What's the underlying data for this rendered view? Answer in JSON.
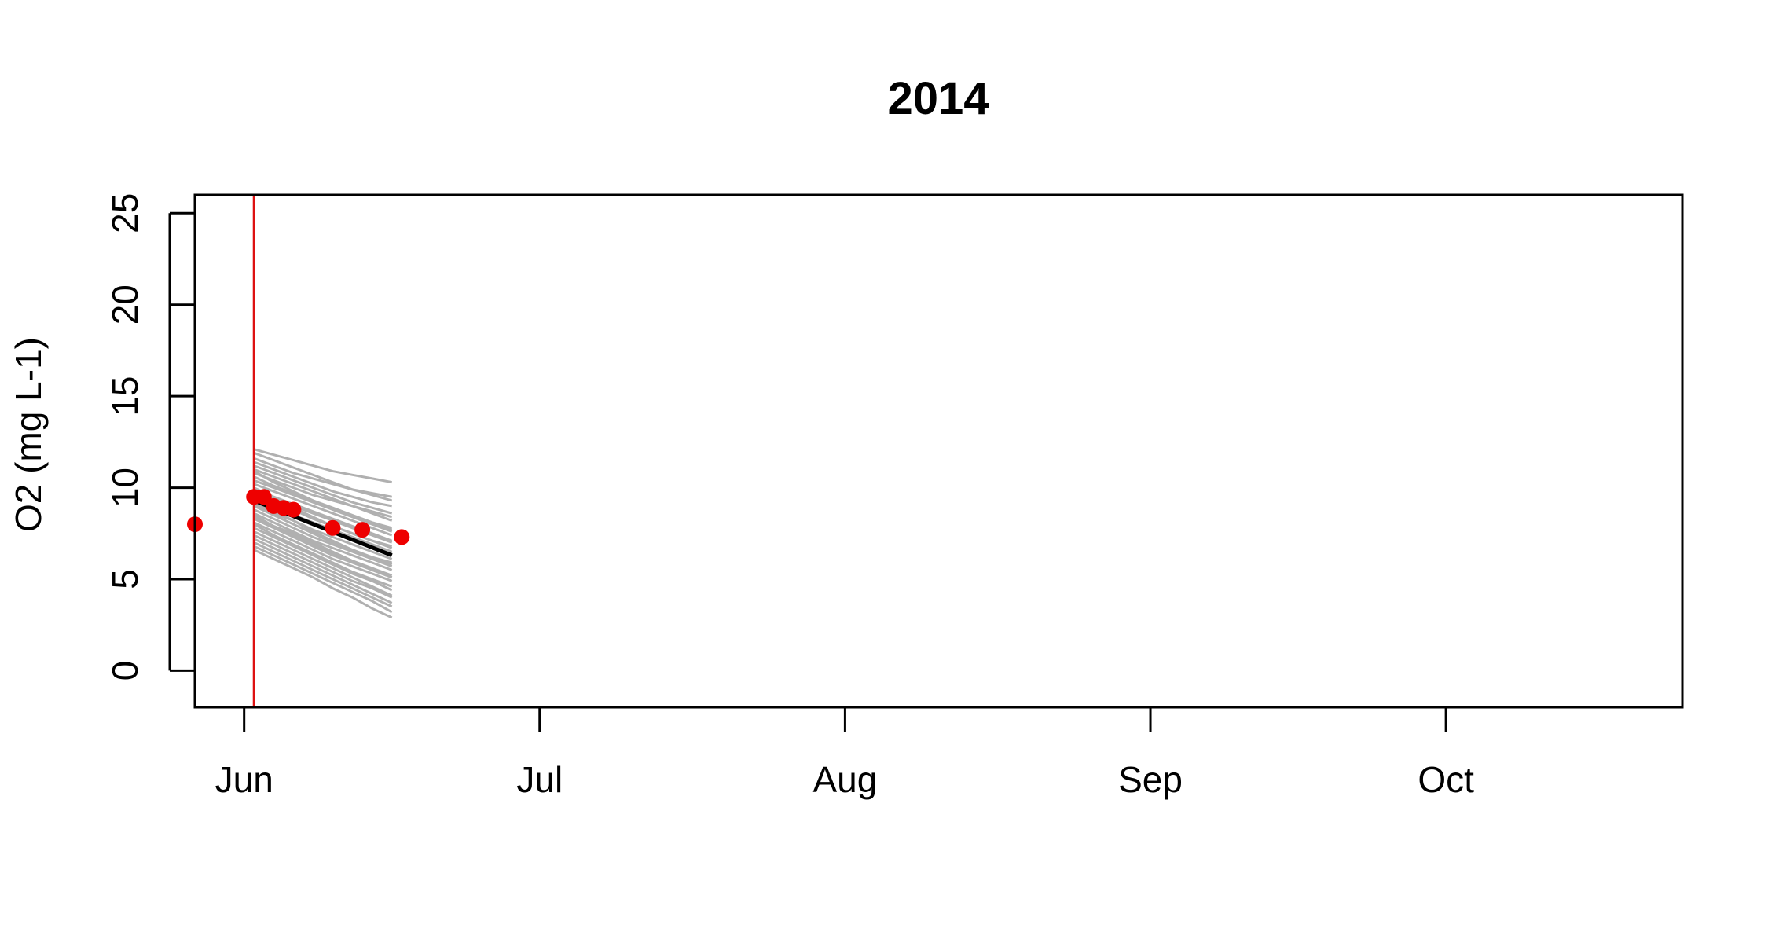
{
  "chart_data": {
    "type": "line",
    "title": "2014",
    "xlabel": "",
    "ylabel": "O2 (mg L-1)",
    "xlim": [
      "2014-05-27",
      "2014-10-25"
    ],
    "ylim": [
      -2,
      26
    ],
    "y_ticks": [
      0,
      5,
      10,
      15,
      20,
      25
    ],
    "x_ticks": [
      {
        "date": "2014-06-01",
        "label": "Jun"
      },
      {
        "date": "2014-07-01",
        "label": "Jul"
      },
      {
        "date": "2014-08-01",
        "label": "Aug"
      },
      {
        "date": "2014-09-01",
        "label": "Sep"
      },
      {
        "date": "2014-10-01",
        "label": "Oct"
      }
    ],
    "grid": false,
    "legend": "none",
    "forecast_start": "2014-06-02",
    "colors": {
      "ensemble": "#b0b0b0",
      "mean": "#000000",
      "observed": "#ee0000",
      "forecast_start_line": "#dd1111"
    },
    "ensemble": {
      "dates": [
        "2014-06-02",
        "2014-06-04",
        "2014-06-06",
        "2014-06-08",
        "2014-06-10",
        "2014-06-12",
        "2014-06-14",
        "2014-06-16"
      ],
      "members": [
        {
          "values": [
            12.1,
            11.8,
            11.5,
            11.2,
            10.9,
            10.7,
            10.5,
            10.3
          ]
        },
        {
          "values": [
            11.9,
            11.5,
            11.1,
            10.7,
            10.3,
            9.9,
            9.6,
            9.3
          ]
        },
        {
          "values": [
            11.6,
            11.2,
            10.8,
            10.5,
            10.2,
            9.9,
            9.7,
            9.5
          ]
        },
        {
          "values": [
            11.4,
            11.0,
            10.6,
            10.2,
            9.8,
            9.5,
            9.2,
            9.0
          ]
        },
        {
          "values": [
            11.2,
            10.8,
            10.4,
            10.0,
            9.6,
            9.2,
            8.9,
            8.6
          ]
        },
        {
          "values": [
            11.0,
            10.6,
            10.2,
            9.8,
            9.4,
            9.0,
            8.6,
            8.2
          ]
        },
        {
          "values": [
            10.8,
            10.4,
            10.0,
            9.6,
            9.3,
            9.0,
            8.7,
            8.4
          ]
        },
        {
          "values": [
            10.6,
            10.1,
            9.7,
            9.3,
            8.9,
            8.5,
            8.1,
            7.8
          ]
        },
        {
          "values": [
            10.4,
            10.0,
            9.6,
            9.2,
            8.8,
            8.4,
            8.0,
            7.6
          ]
        },
        {
          "values": [
            10.2,
            9.8,
            9.4,
            9.0,
            8.6,
            8.2,
            7.8,
            7.4
          ]
        },
        {
          "values": [
            10.0,
            9.5,
            9.1,
            8.7,
            8.3,
            7.9,
            7.5,
            7.1
          ]
        },
        {
          "values": [
            9.8,
            9.4,
            9.0,
            8.6,
            8.2,
            7.8,
            7.4,
            7.0
          ]
        },
        {
          "values": [
            9.7,
            9.2,
            8.8,
            8.3,
            7.9,
            7.5,
            7.1,
            6.7
          ]
        },
        {
          "values": [
            9.5,
            9.0,
            8.5,
            8.1,
            7.7,
            7.3,
            6.9,
            6.5
          ]
        },
        {
          "values": [
            9.3,
            8.8,
            8.4,
            8.0,
            7.6,
            7.2,
            6.8,
            6.4
          ]
        },
        {
          "values": [
            9.1,
            8.6,
            8.2,
            7.7,
            7.3,
            6.9,
            6.5,
            6.1
          ]
        },
        {
          "values": [
            9.0,
            8.5,
            8.0,
            7.5,
            7.0,
            6.6,
            6.2,
            5.8
          ]
        },
        {
          "values": [
            8.8,
            8.3,
            7.8,
            7.3,
            6.9,
            6.5,
            6.1,
            5.7
          ]
        },
        {
          "values": [
            8.6,
            8.1,
            7.6,
            7.1,
            6.7,
            6.3,
            5.9,
            5.5
          ]
        },
        {
          "values": [
            8.5,
            7.9,
            7.4,
            6.9,
            6.4,
            6.0,
            5.6,
            5.2
          ]
        },
        {
          "values": [
            8.3,
            7.8,
            7.3,
            6.8,
            6.3,
            5.9,
            5.5,
            5.1
          ]
        },
        {
          "values": [
            8.1,
            7.6,
            7.1,
            6.6,
            6.1,
            5.7,
            5.3,
            4.9
          ]
        },
        {
          "values": [
            8.0,
            7.4,
            6.9,
            6.4,
            5.9,
            5.4,
            5.0,
            4.6
          ]
        },
        {
          "values": [
            7.8,
            7.3,
            6.8,
            6.3,
            5.8,
            5.3,
            4.9,
            4.4
          ]
        },
        {
          "values": [
            7.6,
            7.1,
            6.6,
            6.1,
            5.6,
            5.1,
            4.6,
            4.1
          ]
        },
        {
          "values": [
            7.4,
            6.9,
            6.4,
            5.9,
            5.4,
            4.9,
            4.5,
            4.0
          ]
        },
        {
          "values": [
            7.2,
            6.7,
            6.2,
            5.7,
            5.2,
            4.7,
            4.2,
            3.7
          ]
        },
        {
          "values": [
            7.0,
            6.5,
            6.0,
            5.5,
            5.0,
            4.5,
            4.0,
            3.5
          ]
        },
        {
          "values": [
            6.8,
            6.3,
            5.8,
            5.3,
            4.8,
            4.3,
            3.8,
            3.2
          ]
        },
        {
          "values": [
            6.6,
            6.1,
            5.6,
            5.1,
            4.5,
            4.0,
            3.4,
            2.9
          ]
        },
        {
          "values": [
            10.9,
            10.3,
            9.8,
            9.3,
            8.8,
            8.4,
            8.0,
            7.7
          ]
        },
        {
          "values": [
            9.9,
            9.4,
            8.9,
            8.4,
            7.9,
            7.5,
            7.1,
            6.8
          ]
        },
        {
          "values": [
            9.2,
            8.7,
            8.2,
            7.6,
            7.1,
            6.6,
            6.2,
            5.9
          ]
        },
        {
          "values": [
            8.4,
            7.9,
            7.5,
            7.0,
            6.5,
            6.0,
            5.5,
            5.1
          ]
        }
      ]
    },
    "mean": {
      "dates": [
        "2014-06-02",
        "2014-06-16"
      ],
      "values": [
        9.3,
        6.3
      ]
    },
    "observed": {
      "dates": [
        "2014-05-27",
        "2014-06-02",
        "2014-06-03",
        "2014-06-04",
        "2014-06-05",
        "2014-06-06",
        "2014-06-10",
        "2014-06-13",
        "2014-06-17"
      ],
      "values": [
        8.0,
        9.5,
        9.5,
        9.0,
        8.9,
        8.8,
        7.8,
        7.7,
        7.3
      ]
    }
  }
}
